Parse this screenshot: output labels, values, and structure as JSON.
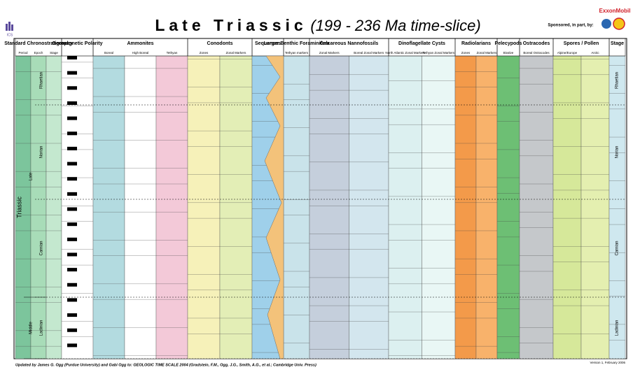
{
  "header": {
    "title_main": "Late Triassic",
    "title_sub": "(199 - 236 Ma time-slice)",
    "left_logo": "ICS",
    "sponsor": "Sponsored, in part, by:",
    "sponsor_logo": "ExxonMobil"
  },
  "chronostratigraphy": {
    "period": "Triassic",
    "epochs": [
      "Late",
      "Middle"
    ],
    "stages": [
      "Rhaetian",
      "Norian",
      "Carnian",
      "Ladinian"
    ]
  },
  "columns": [
    {
      "name": "Standard Chronostratigraphy",
      "subs": [
        "Period",
        "Epoch",
        "Stage"
      ]
    },
    {
      "name": "Geomagnetic Polarity",
      "subs": []
    },
    {
      "name": "Ammonites",
      "subs": [
        "Boreal",
        "High Boreal",
        "Tethyan"
      ]
    },
    {
      "name": "Conodonts",
      "subs": [
        "Zones",
        "Zonal Markers"
      ]
    },
    {
      "name": "Sequences",
      "subs": []
    },
    {
      "name": "Larger Benthic Foraminifera",
      "subs": [
        "Tethyan markers"
      ]
    },
    {
      "name": "Calcareous Nannofossils",
      "subs": [
        "Zonal Markers",
        "Boreal Zonal Markers"
      ]
    },
    {
      "name": "Dinoflagellate Cysts",
      "subs": [
        "North Atlantic Zonal Markers",
        "Tethyan Zonal Markers"
      ]
    },
    {
      "name": "Radiolarians",
      "subs": [
        "Zones",
        "Zonal Markers"
      ]
    },
    {
      "name": "Pelecypods",
      "subs": [
        "Bivalve"
      ]
    },
    {
      "name": "Ostracodes",
      "subs": [
        "Boreal Ostracodes"
      ]
    },
    {
      "name": "Spores / Pollen",
      "subs": [
        "Alpine/Europe",
        "Arctic"
      ]
    },
    {
      "name": "Stage",
      "subs": []
    }
  ],
  "footer": {
    "credit": "Updated by James G. Ogg (Purdue University) and Gabi Ogg to: GEOLOGIC TIME SCALE 2004 (Gradstein, F.M., Ogg, J.G., Smith, A.G., et al.; Cambridge Univ. Press)",
    "version": "Version 1, February 2006"
  }
}
